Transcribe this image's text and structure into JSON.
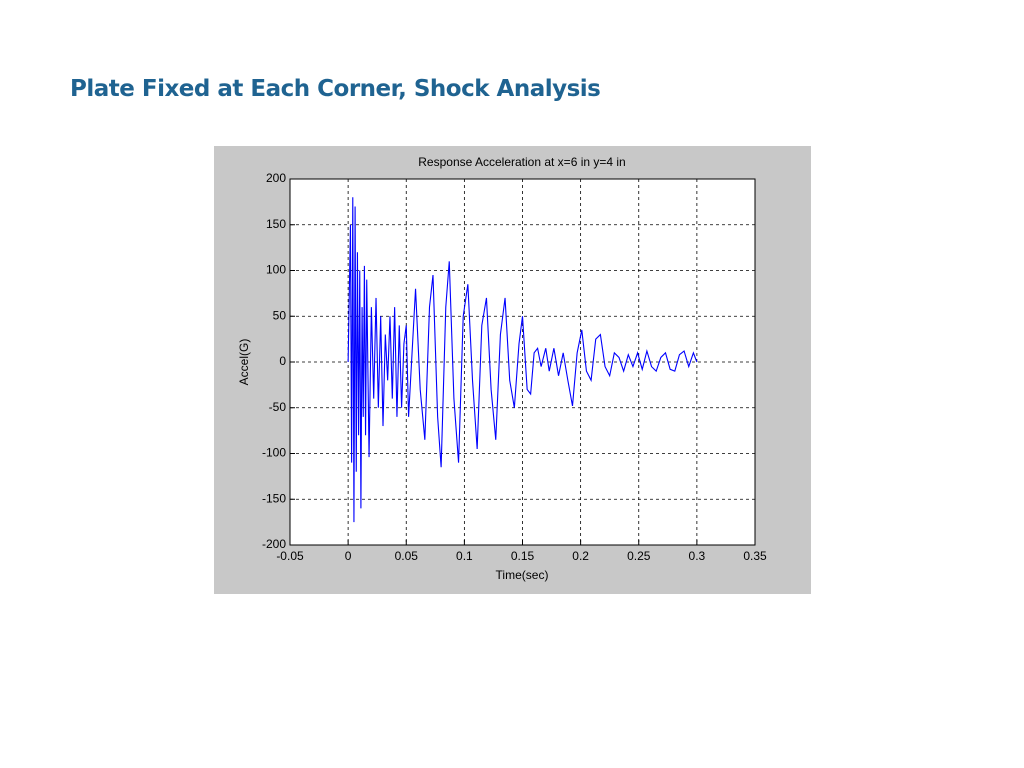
{
  "header": {
    "title": "Plate Fixed at Each Corner, Shock Analysis"
  },
  "chart_data": {
    "type": "line",
    "title": "Response Acceleration at x=6 in  y=4 in",
    "xlabel": "Time(sec)",
    "ylabel": "Accel(G)",
    "xlim": [
      -0.05,
      0.35
    ],
    "xticks": [
      -0.05,
      0,
      0.05,
      0.1,
      0.15,
      0.2,
      0.25,
      0.3,
      0.35
    ],
    "ylim": [
      -200,
      200
    ],
    "yticks": [
      -200,
      -150,
      -100,
      -50,
      0,
      50,
      100,
      150,
      200
    ],
    "grid": true,
    "series": [
      {
        "color": "#0000ff",
        "x": [
          0,
          0.002,
          0.003,
          0.004,
          0.005,
          0.006,
          0.007,
          0.008,
          0.009,
          0.01,
          0.011,
          0.012,
          0.013,
          0.014,
          0.015,
          0.016,
          0.018,
          0.02,
          0.022,
          0.024,
          0.026,
          0.028,
          0.03,
          0.032,
          0.034,
          0.036,
          0.038,
          0.04,
          0.042,
          0.044,
          0.046,
          0.048,
          0.05,
          0.052,
          0.055,
          0.058,
          0.062,
          0.066,
          0.07,
          0.073,
          0.077,
          0.08,
          0.084,
          0.087,
          0.091,
          0.095,
          0.099,
          0.103,
          0.107,
          0.111,
          0.115,
          0.119,
          0.123,
          0.127,
          0.131,
          0.135,
          0.139,
          0.143,
          0.147,
          0.15,
          0.154,
          0.157,
          0.16,
          0.163,
          0.166,
          0.17,
          0.173,
          0.177,
          0.181,
          0.185,
          0.189,
          0.193,
          0.197,
          0.201,
          0.205,
          0.209,
          0.213,
          0.217,
          0.221,
          0.225,
          0.229,
          0.233,
          0.237,
          0.241,
          0.245,
          0.249,
          0.253,
          0.257,
          0.261,
          0.265,
          0.269,
          0.273,
          0.277,
          0.281,
          0.285,
          0.289,
          0.293,
          0.297,
          0.3
        ],
        "values": [
          0,
          150,
          -110,
          180,
          -175,
          170,
          -120,
          120,
          -80,
          100,
          -160,
          60,
          -60,
          105,
          -80,
          90,
          -104,
          60,
          -40,
          70,
          -50,
          50,
          -70,
          30,
          -20,
          50,
          -40,
          60,
          -60,
          40,
          -50,
          20,
          40,
          -60,
          10,
          80,
          -30,
          -85,
          60,
          95,
          -60,
          -115,
          60,
          110,
          -40,
          -110,
          50,
          85,
          -20,
          -95,
          40,
          70,
          -30,
          -85,
          30,
          70,
          -20,
          -50,
          20,
          50,
          -30,
          -35,
          10,
          15,
          -5,
          15,
          -10,
          15,
          -15,
          10,
          -20,
          -48,
          10,
          35,
          -10,
          -20,
          25,
          30,
          -5,
          -15,
          10,
          5,
          -10,
          8,
          -5,
          10,
          -8,
          12,
          -5,
          -10,
          5,
          10,
          -8,
          -10,
          8,
          12,
          -5,
          10,
          0
        ]
      }
    ]
  }
}
